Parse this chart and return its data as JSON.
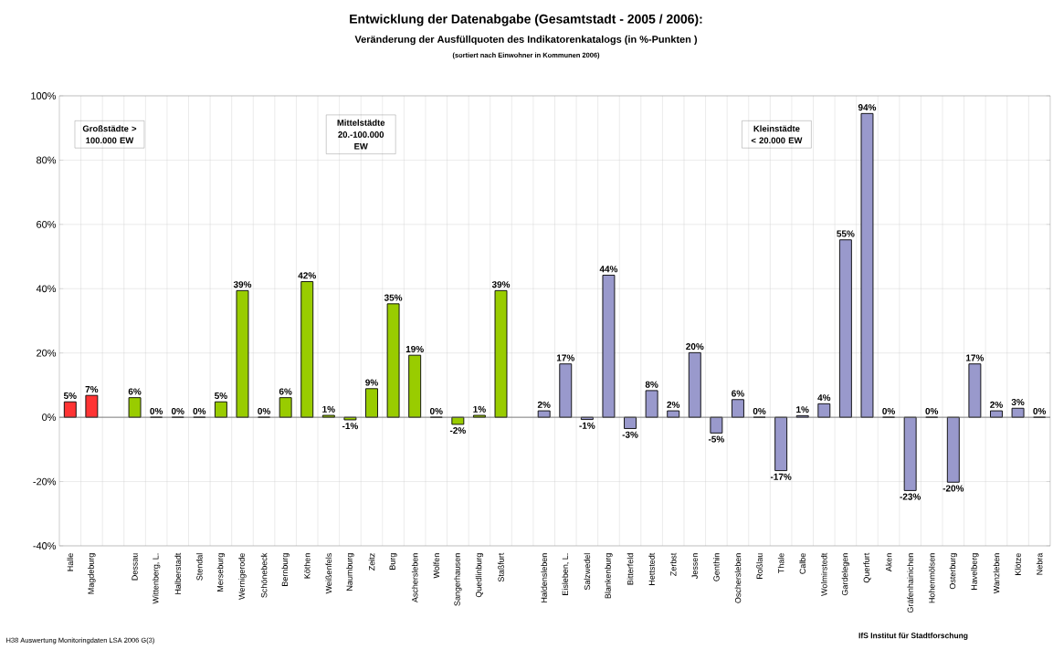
{
  "chart_data": {
    "type": "bar",
    "title": "Entwicklung der Datenabgabe (Gesamtstadt - 2005 / 2006):",
    "subtitle": "Veränderung der Ausfüllquoten des Indikatorenkatalogs (in %-Punkten )",
    "categories": [
      "Halle",
      "Magdeburg",
      null,
      "Dessau",
      "Wittenberg, L.",
      "Halberstadt",
      "Stendal",
      "Merseburg",
      "Wernigerode",
      "Schönebeck",
      "Bernburg",
      "Köthen",
      "Weißenfels",
      "Naumburg",
      "Zeitz",
      "Burg",
      "Aschersleben",
      "Wolfen",
      "Sangerhausen",
      "Quedlinburg",
      "Staßfurt",
      null,
      "Haldensleben",
      "Eisleben, L.",
      "Salzwedel",
      "Blankenburg",
      "Bitterfeld",
      "Hettstedt",
      "Zerbst",
      "Jessen",
      "Genthin",
      "Oschersleben",
      "Roßlau",
      "Thale",
      "Calbe",
      "Wolmirstedt",
      "Gardelegen",
      "Querfurt",
      "Aken",
      "Gräfenhainichen",
      "Hohenmölsen",
      "Osterburg",
      "Havelberg",
      "Wanzleben",
      "Klötze",
      "Nebra"
    ],
    "values": [
      4.8,
      6.8,
      null,
      6.1,
      0,
      0,
      0,
      4.8,
      39.4,
      0,
      6.1,
      42.2,
      0.6,
      -0.8,
      8.9,
      35.3,
      19.3,
      0,
      -2.2,
      0.6,
      39.4,
      null,
      2.0,
      16.6,
      -0.7,
      44.2,
      -3.5,
      8.3,
      2.0,
      20.1,
      -4.9,
      5.5,
      0,
      -16.6,
      0.5,
      4.2,
      55.2,
      94.5,
      0,
      -22.8,
      0,
      -20.2,
      16.6,
      2.0,
      2.8,
      0
    ],
    "value_labels": [
      "5%",
      "7%",
      null,
      "6%",
      "0%",
      "0%",
      "0%",
      "5%",
      "39%",
      "0%",
      "6%",
      "42%",
      "1%",
      "-1%",
      "9%",
      "35%",
      "19%",
      "0%",
      "-2%",
      "1%",
      "39%",
      null,
      "2%",
      "17%",
      "-1%",
      "44%",
      "-3%",
      "8%",
      "2%",
      "20%",
      "-5%",
      "6%",
      "0%",
      "-17%",
      "1%",
      "4%",
      "55%",
      "94%",
      "0%",
      "-23%",
      "0%",
      "-20%",
      "17%",
      "2%",
      "3%",
      "0%"
    ],
    "colors": [
      "#ff3333",
      "#ff3333",
      null,
      "#99cc00",
      "#99cc00",
      "#99cc00",
      "#99cc00",
      "#99cc00",
      "#99cc00",
      "#99cc00",
      "#99cc00",
      "#99cc00",
      "#99cc00",
      "#99cc00",
      "#99cc00",
      "#99cc00",
      "#99cc00",
      "#99cc00",
      "#99cc00",
      "#99cc00",
      "#99cc00",
      null,
      "#9999cc",
      "#9999cc",
      "#9999cc",
      "#9999cc",
      "#9999cc",
      "#9999cc",
      "#9999cc",
      "#9999cc",
      "#9999cc",
      "#9999cc",
      "#9999cc",
      "#9999cc",
      "#9999cc",
      "#9999cc",
      "#9999cc",
      "#9999cc",
      "#9999cc",
      "#9999cc",
      "#9999cc",
      "#9999cc",
      "#9999cc",
      "#9999cc",
      "#9999cc",
      "#9999cc"
    ],
    "ylim": [
      -40,
      100
    ],
    "yticks": [
      {
        "value": -40,
        "label": "-40%"
      },
      {
        "value": -20,
        "label": "-20%"
      },
      {
        "value": 0,
        "label": "0%"
      },
      {
        "value": 20,
        "label": "20%"
      },
      {
        "value": 40,
        "label": "40%"
      },
      {
        "value": 60,
        "label": "60%"
      },
      {
        "value": 80,
        "label": "80%"
      },
      {
        "value": 100,
        "label": "100%"
      }
    ],
    "grid": true,
    "annotations": [
      "(sortiert nach Einwohner in Kommunen 2006)",
      "Großstädte > 100.000 EW",
      "Mittelstädte 20.-100.000 EW",
      "Kleinstädte < 20.000 EW",
      "H38 Auswertung Monitoringdaten LSA 2006 G(3)",
      "IfS Institut für Stadtforschung"
    ]
  }
}
